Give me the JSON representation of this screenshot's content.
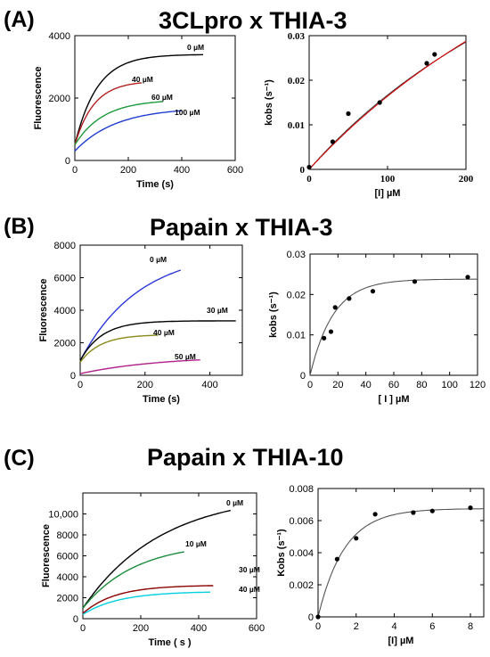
{
  "panels": [
    {
      "label": "(A)",
      "title": "3CLpro x THIA-3",
      "left": {
        "type": "line",
        "xlabel": "Time (s)",
        "ylabel": "Fluorescence",
        "xlim": [
          0,
          600
        ],
        "ylim": [
          0,
          4000
        ],
        "xticks": [
          0,
          200,
          400,
          600
        ],
        "yticks": [
          0,
          2000,
          4000
        ],
        "series": [
          {
            "name": "0 µM",
            "color": "#000000",
            "t_end": 480,
            "y0": 500,
            "amp": 2900,
            "k": 0.012
          },
          {
            "name": "40 µM",
            "color": "#b22222",
            "t_end": 250,
            "y0": 500,
            "amp": 2050,
            "k": 0.014
          },
          {
            "name": "60 µM",
            "color": "#1a9a3a",
            "t_end": 330,
            "y0": 500,
            "amp": 1450,
            "k": 0.0095
          },
          {
            "name": "100 µM",
            "color": "#1e3ccf",
            "t_end": 400,
            "y0": 300,
            "amp": 1400,
            "k": 0.0065
          }
        ]
      },
      "right": {
        "type": "scatter",
        "xlabel": "[I] µM",
        "ylabel": "kobs (s⁻¹)",
        "xlim": [
          0,
          200
        ],
        "ylim": [
          0,
          0.03
        ],
        "xticks": [
          0,
          100,
          200
        ],
        "yticks": [
          0,
          0.01,
          0.02,
          0.03
        ],
        "points": [
          [
            0,
            0.0005
          ],
          [
            30,
            0.0062
          ],
          [
            50,
            0.0125
          ],
          [
            90,
            0.015
          ],
          [
            150,
            0.0238
          ],
          [
            160,
            0.0258
          ]
        ],
        "fit": {
          "kmax": 0.115,
          "ki": 600,
          "color": "#d40000"
        },
        "fit2": {
          "kmax": 0.1,
          "ki": 500,
          "color": "#444444"
        }
      }
    },
    {
      "label": "(B)",
      "title": "Papain x THIA-3",
      "left": {
        "type": "line",
        "xlabel": "Time (s)",
        "ylabel": "Fluorescence",
        "xlim": [
          0,
          500
        ],
        "ylim": [
          0,
          8000
        ],
        "xticks": [
          0,
          200,
          400
        ],
        "yticks": [
          0,
          2000,
          4000,
          6000,
          8000
        ],
        "series": [
          {
            "name": "0 µM",
            "color": "#2b36d8",
            "t_end": 310,
            "y0": 900,
            "amp": 6800,
            "k": 0.0055
          },
          {
            "name": "30 µM",
            "color": "#000000",
            "t_end": 480,
            "y0": 900,
            "amp": 2450,
            "k": 0.015
          },
          {
            "name": "40 µM",
            "color": "#8a8a1a",
            "t_end": 240,
            "y0": 800,
            "amp": 1700,
            "k": 0.016
          },
          {
            "name": "50 µM",
            "color": "#b0208a",
            "t_end": 370,
            "y0": 100,
            "amp": 1100,
            "k": 0.004
          }
        ]
      },
      "right": {
        "type": "scatter",
        "xlabel": "[ I ] µM",
        "ylabel": "kobs (s⁻¹)",
        "xlim": [
          0,
          120
        ],
        "ylim": [
          0,
          0.03
        ],
        "xticks": [
          0,
          20,
          40,
          60,
          80,
          100,
          120
        ],
        "yticks": [
          0,
          0.01,
          0.02,
          0.03
        ],
        "points": [
          [
            10,
            0.0092
          ],
          [
            15,
            0.0108
          ],
          [
            18,
            0.0168
          ],
          [
            28,
            0.019
          ],
          [
            45,
            0.0208
          ],
          [
            75,
            0.0232
          ],
          [
            113,
            0.0243
          ]
        ],
        "fit": {
          "ymax": 0.0238,
          "k": 0.06,
          "color": "#555555"
        }
      }
    },
    {
      "label": "(C)",
      "title": "Papain x THIA-10",
      "left": {
        "type": "line",
        "xlabel": "Time ( s )",
        "ylabel": "Fluorescence",
        "xlim": [
          0,
          600
        ],
        "ylim": [
          0,
          12000
        ],
        "xticks": [
          0,
          200,
          400,
          600
        ],
        "yticks": [
          0,
          2000,
          4000,
          6000,
          8000,
          10000
        ],
        "ytick_labels": [
          "0",
          "2000",
          "4000",
          "6000",
          "8000",
          "10,000"
        ],
        "series": [
          {
            "name": "0 µM",
            "color": "#000000",
            "t_end": 510,
            "y0": 1000,
            "amp": 11000,
            "k": 0.0037
          },
          {
            "name": "10 µM",
            "color": "#1a8a3a",
            "t_end": 350,
            "y0": 1000,
            "amp": 6300,
            "k": 0.0055
          },
          {
            "name": "30 µM",
            "color": "#8b0000",
            "t_end": 450,
            "y0": 500,
            "amp": 2700,
            "k": 0.009
          },
          {
            "name": "40 µM",
            "color": "#00d0e0",
            "t_end": 440,
            "y0": 400,
            "amp": 2200,
            "k": 0.008
          }
        ]
      },
      "right": {
        "type": "scatter",
        "xlabel": "[I] µM",
        "ylabel": "Kobs (s⁻¹)",
        "xlim": [
          0,
          8.7
        ],
        "ylim": [
          0,
          0.008
        ],
        "xticks": [
          0,
          2,
          4,
          6,
          8
        ],
        "yticks": [
          0,
          0.002,
          0.004,
          0.006,
          0.008
        ],
        "ytick_labels": [
          "0",
          "0.002",
          "0.004",
          "0.006",
          "0.008"
        ],
        "points": [
          [
            0,
            0.0
          ],
          [
            1,
            0.0036
          ],
          [
            2,
            0.0049
          ],
          [
            3,
            0.0064
          ],
          [
            5,
            0.0065
          ],
          [
            6,
            0.0066
          ],
          [
            8,
            0.0068
          ]
        ],
        "fit": {
          "ymax": 0.00675,
          "k": 0.72,
          "color": "#555555"
        }
      }
    }
  ]
}
